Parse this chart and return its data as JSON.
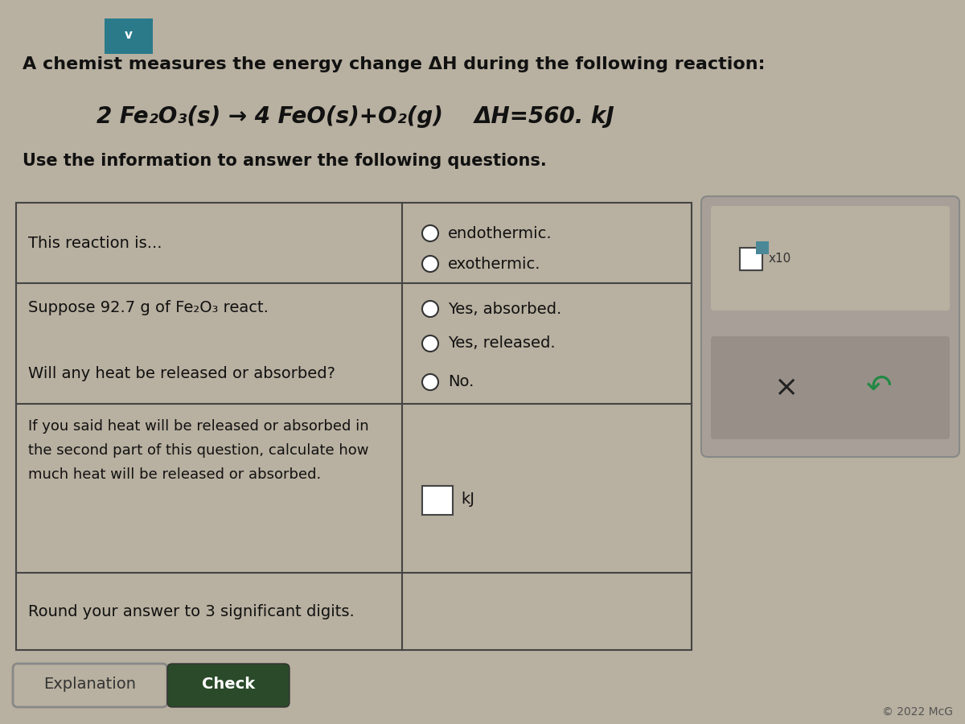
{
  "bg_color": "#b8b0a0",
  "sidebar_bg": "#a8a098",
  "sidebar_inner_bg": "#989088",
  "table_border": "#444444",
  "cell_bg": "#b8b0a0",
  "white": "#ffffff",
  "dropdown_bg": "#2a7a8a",
  "title_line1": "A chemist measures the energy change ΔH during the following reaction:",
  "reaction_formula": "2 Fe₂O₃(s) → 4 FeO(s)+O₂(g)",
  "reaction_dH": "ΔH=560. kJ",
  "subtitle": "Use the information to answer the following questions.",
  "row1_q": "This reaction is...",
  "row1_opts": [
    "endothermic.",
    "exothermic."
  ],
  "row2_q1": "Suppose 92.7 g of Fe₂O₃ react.",
  "row2_q2": "Will any heat be released or absorbed?",
  "row2_opts": [
    "Yes, absorbed.",
    "Yes, released.",
    "No."
  ],
  "row3_line1": "If you said heat will be released or absorbed in",
  "row3_line2": "the second part of this question, calculate how",
  "row3_line3": "much heat will be released or absorbed.",
  "row3_unit": "kJ",
  "row4_text": "Round your answer to 3 significant digits.",
  "btn1_label": "Explanation",
  "btn2_label": "Check",
  "btn2_color": "#2a4a2a",
  "copyright": "© 2022 McG",
  "x10_label": "x10",
  "teal_sq_color": "#4a8898",
  "radio_color": "#333333"
}
